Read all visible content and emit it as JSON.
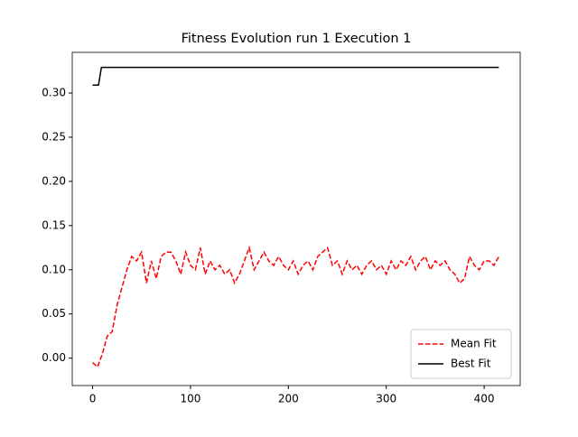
{
  "chart_data": {
    "type": "line",
    "title": "Fitness Evolution run 1 Execution 1",
    "xlim": [
      -20.8,
      436.8
    ],
    "xticks": [
      0,
      100,
      200,
      300,
      400
    ],
    "ylim": [
      -0.031,
      0.346
    ],
    "yticks": [
      {
        "value": 0,
        "label": "0.00"
      },
      {
        "value": 0.05,
        "label": "0.05"
      },
      {
        "value": 0.1,
        "label": "0.10"
      },
      {
        "value": 0.15,
        "label": "0.15"
      },
      {
        "value": 0.2,
        "label": "0.20"
      },
      {
        "value": 0.25,
        "label": "0.25"
      },
      {
        "value": 0.3,
        "label": "0.30"
      }
    ],
    "legend": "lower right",
    "series": [
      {
        "name": "Mean Fit",
        "color": "#ff0000",
        "linestyle": "dashed",
        "x": [
          0,
          5,
          10,
          15,
          20,
          25,
          30,
          35,
          40,
          45,
          50,
          55,
          60,
          65,
          70,
          75,
          80,
          85,
          90,
          95,
          100,
          105,
          110,
          115,
          120,
          125,
          130,
          135,
          140,
          145,
          150,
          155,
          160,
          165,
          170,
          175,
          180,
          185,
          190,
          195,
          200,
          205,
          210,
          215,
          220,
          225,
          230,
          235,
          240,
          245,
          250,
          255,
          260,
          265,
          270,
          275,
          280,
          285,
          290,
          295,
          300,
          305,
          310,
          315,
          320,
          325,
          330,
          335,
          340,
          345,
          350,
          355,
          360,
          365,
          370,
          375,
          380,
          385,
          390,
          395,
          400,
          405,
          410,
          415
        ],
        "values": [
          -0.005,
          -0.01,
          0.005,
          0.025,
          0.03,
          0.06,
          0.08,
          0.1,
          0.115,
          0.11,
          0.12,
          0.085,
          0.11,
          0.09,
          0.115,
          0.12,
          0.12,
          0.11,
          0.095,
          0.12,
          0.105,
          0.1,
          0.125,
          0.095,
          0.11,
          0.1,
          0.105,
          0.095,
          0.1,
          0.085,
          0.095,
          0.11,
          0.125,
          0.1,
          0.11,
          0.12,
          0.11,
          0.105,
          0.115,
          0.105,
          0.1,
          0.11,
          0.095,
          0.105,
          0.11,
          0.1,
          0.115,
          0.12,
          0.125,
          0.105,
          0.11,
          0.095,
          0.11,
          0.1,
          0.105,
          0.095,
          0.105,
          0.11,
          0.1,
          0.105,
          0.095,
          0.11,
          0.1,
          0.11,
          0.105,
          0.115,
          0.1,
          0.11,
          0.115,
          0.1,
          0.11,
          0.105,
          0.11,
          0.1,
          0.095,
          0.085,
          0.09,
          0.115,
          0.105,
          0.1,
          0.11,
          0.11,
          0.105,
          0.115
        ]
      },
      {
        "name": "Best Fit",
        "color": "#000000",
        "linestyle": "solid",
        "x": [
          0,
          6,
          9,
          415
        ],
        "values": [
          0.309,
          0.309,
          0.329,
          0.329
        ]
      }
    ]
  }
}
